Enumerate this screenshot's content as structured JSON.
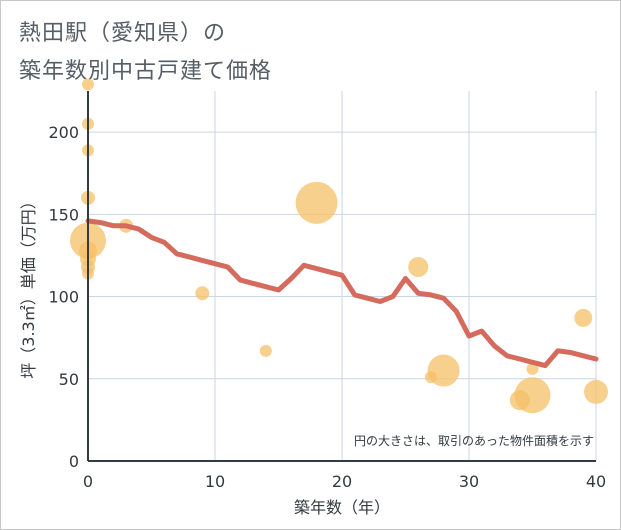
{
  "title_line1": "熱田駅（愛知県）の",
  "title_line2": "築年数別中古戸建て価格",
  "chart_data": {
    "type": "scatter",
    "xlabel": "築年数（年）",
    "ylabel": "坪（3.3㎡）単価（万円）",
    "xlim": [
      0,
      40
    ],
    "ylim": [
      0,
      225
    ],
    "xticks": [
      "0",
      "10",
      "20",
      "30",
      "40"
    ],
    "yticks": [
      "0",
      "50",
      "100",
      "150",
      "200"
    ],
    "note": "円の大きさは、取引のあった物件面積を示す",
    "grid": true,
    "colors": {
      "bubble": "#f5c067",
      "line": "#d46b5d",
      "grid": "#c9d6e3",
      "axis": "#333a40"
    },
    "bubbles": [
      {
        "x": 0,
        "y": 229,
        "size": 6
      },
      {
        "x": 0,
        "y": 205,
        "size": 6
      },
      {
        "x": 0,
        "y": 189,
        "size": 6
      },
      {
        "x": 0,
        "y": 160,
        "size": 7
      },
      {
        "x": 0,
        "y": 134,
        "size": 18
      },
      {
        "x": 0,
        "y": 128,
        "size": 9
      },
      {
        "x": 0,
        "y": 123,
        "size": 8
      },
      {
        "x": 0,
        "y": 118,
        "size": 7
      },
      {
        "x": 0,
        "y": 114,
        "size": 6
      },
      {
        "x": 3,
        "y": 143,
        "size": 7
      },
      {
        "x": 9,
        "y": 102,
        "size": 7
      },
      {
        "x": 14,
        "y": 67,
        "size": 6
      },
      {
        "x": 18,
        "y": 157,
        "size": 21
      },
      {
        "x": 26,
        "y": 118,
        "size": 10
      },
      {
        "x": 27,
        "y": 51,
        "size": 6
      },
      {
        "x": 28,
        "y": 55,
        "size": 16
      },
      {
        "x": 34,
        "y": 37,
        "size": 10
      },
      {
        "x": 35,
        "y": 56,
        "size": 6
      },
      {
        "x": 35,
        "y": 40,
        "size": 18
      },
      {
        "x": 39,
        "y": 87,
        "size": 9
      },
      {
        "x": 40,
        "y": 42,
        "size": 12
      }
    ],
    "line": {
      "x": [
        0,
        1,
        2,
        3,
        4,
        5,
        6,
        7,
        8,
        9,
        10,
        11,
        12,
        13,
        14,
        15,
        16,
        17,
        18,
        19,
        20,
        21,
        22,
        23,
        24,
        25,
        26,
        27,
        28,
        29,
        30,
        31,
        32,
        33,
        34,
        35,
        36,
        37,
        38,
        39,
        40
      ],
      "y": [
        146,
        145,
        143,
        143,
        141,
        136,
        133,
        126,
        124,
        122,
        120,
        118,
        110,
        108,
        106,
        104,
        111,
        119,
        117,
        115,
        113,
        101,
        99,
        97,
        100,
        111,
        102,
        101,
        99,
        91,
        76,
        79,
        70,
        64,
        62,
        60,
        58,
        67,
        66,
        64,
        62
      ]
    }
  }
}
